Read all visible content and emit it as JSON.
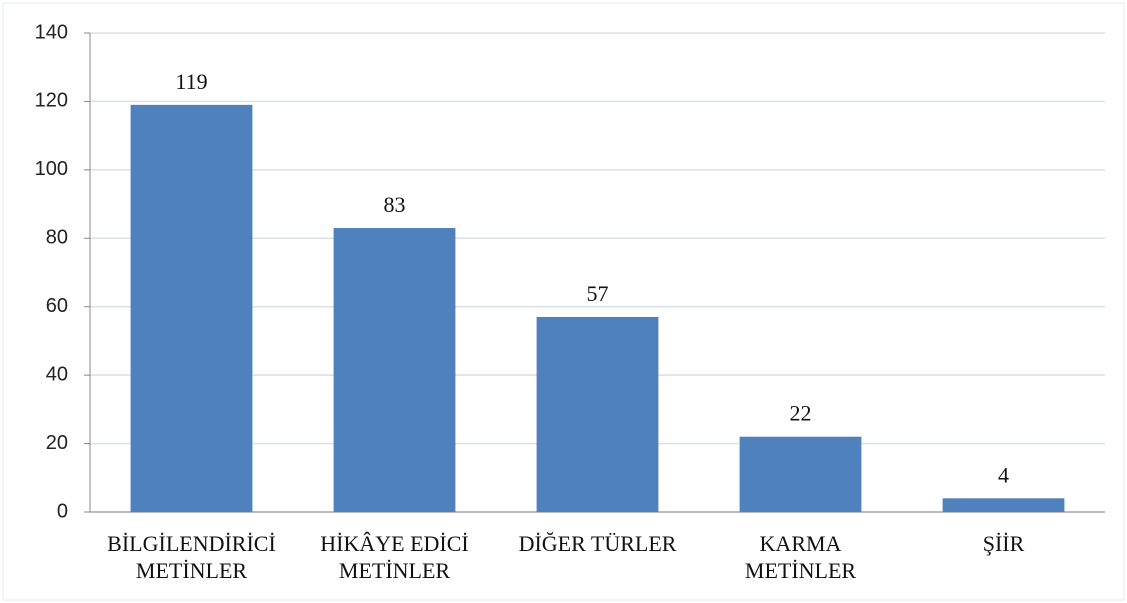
{
  "chart_data": {
    "type": "bar",
    "categories": [
      "BİLGİLENDİRİCİ\nMETİNLER",
      "HİKÂYE EDİCİ\nMETİNLER",
      "DİĞER TÜRLER",
      "KARMA\nMETİNLER",
      "ŞİİR"
    ],
    "values": [
      119,
      83,
      57,
      22,
      4
    ],
    "color": "#4f81bd",
    "ylim": [
      0,
      140
    ],
    "yticks": [
      0,
      20,
      40,
      60,
      80,
      100,
      120,
      140
    ],
    "grid": true
  }
}
